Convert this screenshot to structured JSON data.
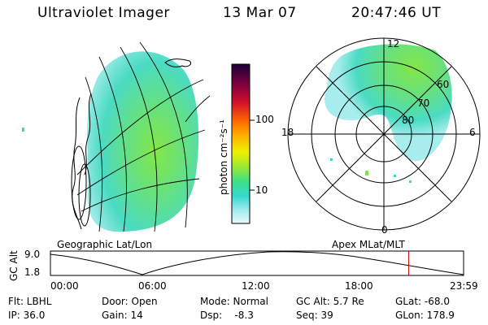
{
  "header": {
    "title": "Ultraviolet Imager",
    "date": "13 Mar 07",
    "time": "20:47:46 UT"
  },
  "colorbar": {
    "unit_label": "photon cm⁻²s⁻¹",
    "ticks": [
      "100",
      "10"
    ],
    "colors": [
      "#1a0033",
      "#7a0040",
      "#d0102a",
      "#ff6a00",
      "#ffb000",
      "#f0f000",
      "#a0e830",
      "#3be08a",
      "#38d8d0",
      "#a6ecec",
      "#e8f8f8"
    ]
  },
  "panels": {
    "left_caption": "Geographic Lat/Lon",
    "right_caption": "Apex MLat/MLT",
    "polar_labels": {
      "mlt_top": "12",
      "mlt_bottom": "0",
      "mlt_left": "18",
      "mlt_right": "6",
      "lat_60": "60",
      "lat_70": "70",
      "lat_80": "80"
    }
  },
  "timeline": {
    "y_axis_label": "GC Alt",
    "y_max": "9.0",
    "y_min": "1.8",
    "x_ticks": [
      "00:00",
      "06:00",
      "12:00",
      "18:00",
      "23:59"
    ],
    "current_time_fraction": 0.867
  },
  "footer": {
    "flt": "Flt: LBHL",
    "ip": "IP: 36.0",
    "door": "Door: Open",
    "gain": "Gain: 14",
    "mode": "Mode: Normal",
    "dsp": "Dsp:    -8.3",
    "gc_alt": "GC Alt: 5.7 Re",
    "seq": "Seq: 39",
    "glat": "GLat: -68.0",
    "glon": "GLon: 178.9"
  }
}
